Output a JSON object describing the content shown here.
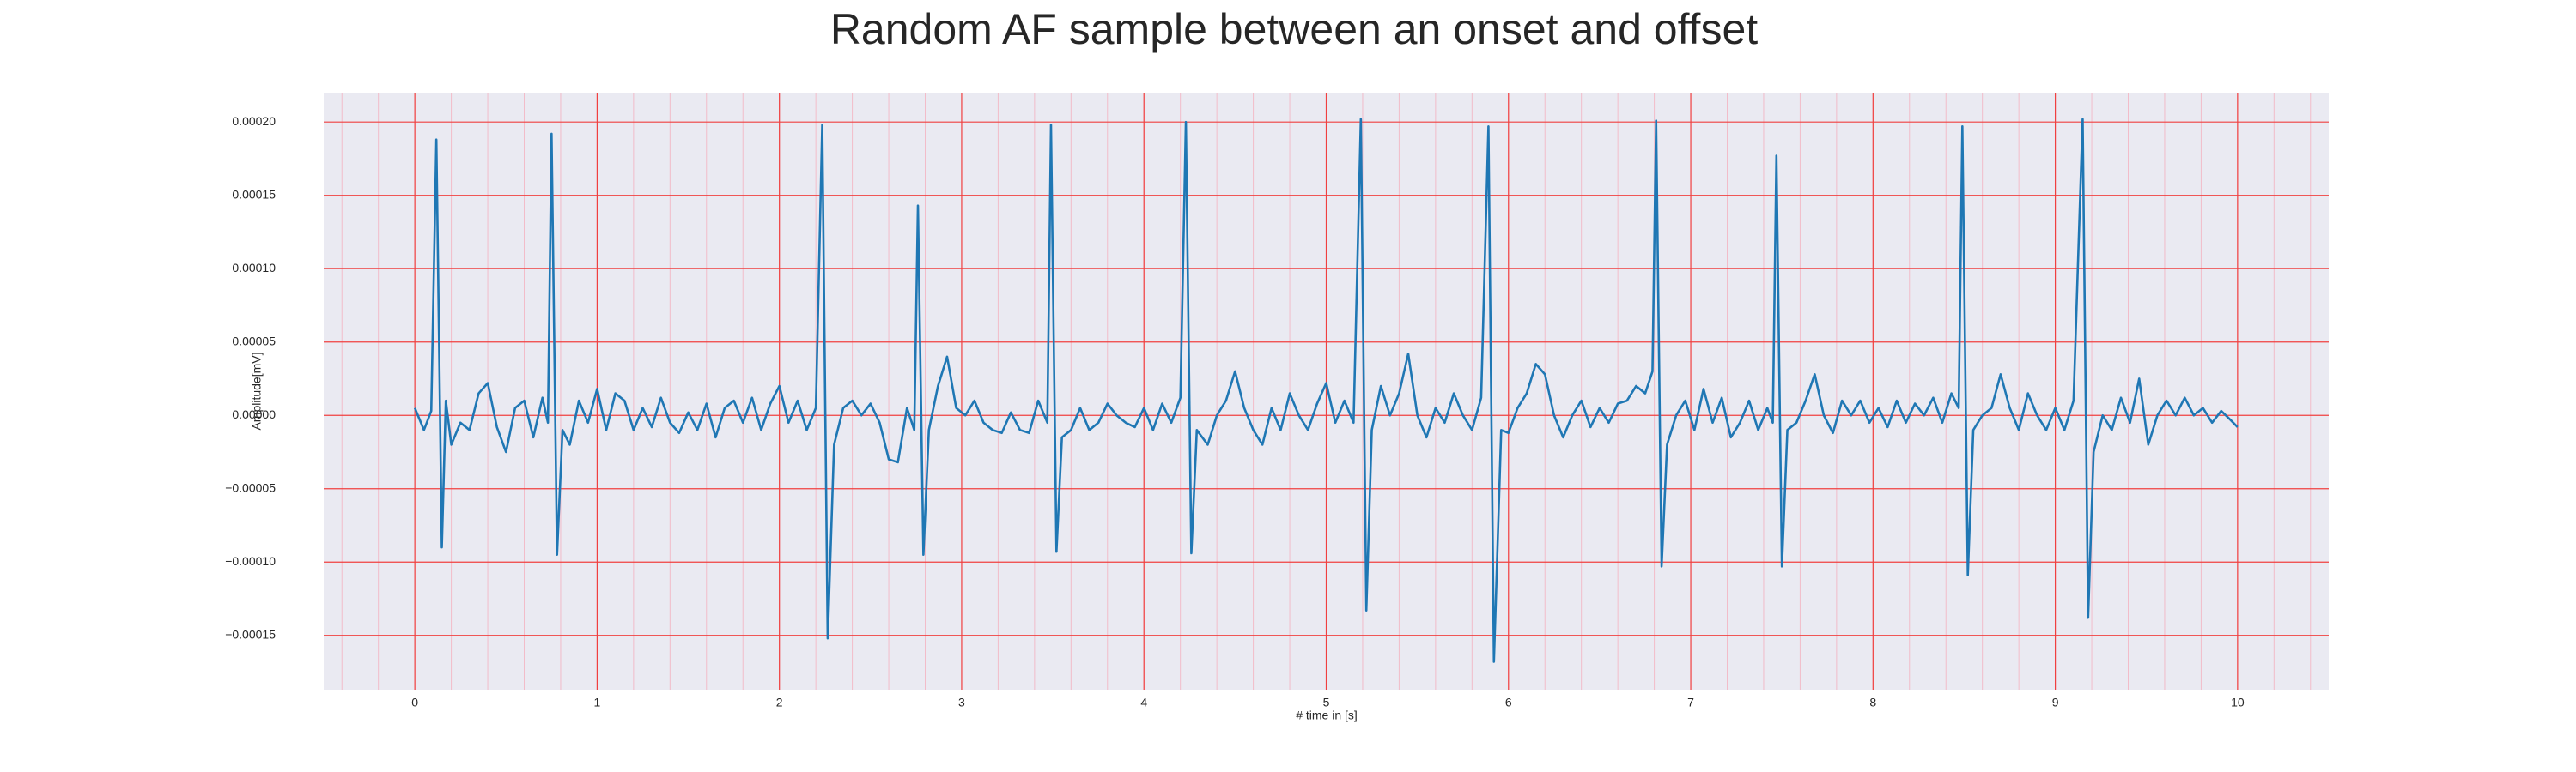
{
  "chart_data": {
    "type": "line",
    "title": "Random AF sample between an onset and offset",
    "xlabel": "# time in [s]",
    "ylabel": "Amplitude[mV]",
    "xlim": [
      -0.5,
      10.5
    ],
    "ylim": [
      -0.000187,
      0.00022
    ],
    "xticks": [
      0,
      1,
      2,
      3,
      4,
      5,
      6,
      7,
      8,
      9,
      10
    ],
    "yticks": [
      {
        "value": 0.0002,
        "label": "0.00020"
      },
      {
        "value": 0.00015,
        "label": "0.00015"
      },
      {
        "value": 0.0001,
        "label": "0.00010"
      },
      {
        "value": 5e-05,
        "label": "0.00005"
      },
      {
        "value": 0,
        "label": "0.00000"
      },
      {
        "value": -5e-05,
        "label": "−0.00005"
      },
      {
        "value": -0.0001,
        "label": "−0.00010"
      },
      {
        "value": -0.00015,
        "label": "−0.00015"
      }
    ],
    "grid": true,
    "minor_grid": true,
    "x": [
      0,
      0.05,
      0.09,
      0.118,
      0.148,
      0.17,
      0.2,
      0.25,
      0.3,
      0.35,
      0.4,
      0.45,
      0.5,
      0.55,
      0.6,
      0.65,
      0.7,
      0.73,
      0.75,
      0.78,
      0.81,
      0.85,
      0.9,
      0.95,
      1.0,
      1.05,
      1.1,
      1.15,
      1.2,
      1.25,
      1.3,
      1.35,
      1.4,
      1.45,
      1.5,
      1.55,
      1.6,
      1.65,
      1.7,
      1.75,
      1.8,
      1.85,
      1.9,
      1.95,
      2.0,
      2.05,
      2.1,
      2.15,
      2.2,
      2.235,
      2.265,
      2.3,
      2.35,
      2.4,
      2.45,
      2.5,
      2.55,
      2.6,
      2.65,
      2.7,
      2.74,
      2.76,
      2.79,
      2.82,
      2.87,
      2.92,
      2.97,
      3.02,
      3.07,
      3.12,
      3.17,
      3.22,
      3.27,
      3.32,
      3.37,
      3.42,
      3.47,
      3.49,
      3.52,
      3.55,
      3.6,
      3.65,
      3.7,
      3.75,
      3.8,
      3.85,
      3.9,
      3.95,
      4.0,
      4.05,
      4.1,
      4.15,
      4.2,
      4.23,
      4.26,
      4.29,
      4.35,
      4.4,
      4.45,
      4.5,
      4.55,
      4.6,
      4.65,
      4.7,
      4.75,
      4.8,
      4.85,
      4.9,
      4.95,
      5.0,
      5.05,
      5.1,
      5.15,
      5.19,
      5.22,
      5.25,
      5.3,
      5.35,
      5.4,
      5.45,
      5.5,
      5.55,
      5.6,
      5.65,
      5.7,
      5.75,
      5.8,
      5.85,
      5.89,
      5.92,
      5.96,
      6.0,
      6.05,
      6.1,
      6.15,
      6.2,
      6.25,
      6.3,
      6.35,
      6.4,
      6.45,
      6.5,
      6.55,
      6.6,
      6.65,
      6.7,
      6.75,
      6.79,
      6.81,
      6.84,
      6.87,
      6.92,
      6.97,
      7.02,
      7.07,
      7.12,
      7.17,
      7.22,
      7.27,
      7.32,
      7.37,
      7.42,
      7.45,
      7.47,
      7.5,
      7.53,
      7.58,
      7.63,
      7.68,
      7.73,
      7.78,
      7.83,
      7.88,
      7.93,
      7.98,
      8.03,
      8.08,
      8.13,
      8.18,
      8.23,
      8.28,
      8.33,
      8.38,
      8.43,
      8.47,
      8.49,
      8.52,
      8.55,
      8.6,
      8.65,
      8.7,
      8.75,
      8.8,
      8.85,
      8.9,
      8.95,
      9.0,
      9.05,
      9.1,
      9.15,
      9.18,
      9.21,
      9.26,
      9.31,
      9.36,
      9.41,
      9.46,
      9.51,
      9.56,
      9.61,
      9.66,
      9.71,
      9.76,
      9.81,
      9.86,
      9.91,
      9.96,
      10.0
    ],
    "series": [
      {
        "name": "Amplitude",
        "color": "#1f77b4",
        "values": [
          5e-06,
          -1e-05,
          3e-06,
          0.000188,
          -9e-05,
          1e-05,
          -2e-05,
          -5e-06,
          -1e-05,
          1.5e-05,
          2.2e-05,
          -8e-06,
          -2.5e-05,
          5e-06,
          1e-05,
          -1.5e-05,
          1.2e-05,
          -5e-06,
          0.000192,
          -9.5e-05,
          -1e-05,
          -2e-05,
          1e-05,
          -5e-06,
          1.8e-05,
          -1e-05,
          1.5e-05,
          1e-05,
          -1e-05,
          5e-06,
          -8e-06,
          1.2e-05,
          -5e-06,
          -1.2e-05,
          2e-06,
          -1e-05,
          8e-06,
          -1.5e-05,
          5e-06,
          1e-05,
          -5e-06,
          1.2e-05,
          -1e-05,
          8e-06,
          2e-05,
          -5e-06,
          1e-05,
          -1e-05,
          5e-06,
          0.000198,
          -0.000152,
          -2e-05,
          5e-06,
          1e-05,
          0,
          8e-06,
          -5e-06,
          -3e-05,
          -3.2e-05,
          5e-06,
          -1e-05,
          0.000143,
          -9.5e-05,
          -1e-05,
          2e-05,
          4e-05,
          5e-06,
          0,
          1e-05,
          -5e-06,
          -1e-05,
          -1.2e-05,
          2e-06,
          -1e-05,
          -1.2e-05,
          1e-05,
          -5e-06,
          0.000198,
          -9.3e-05,
          -1.5e-05,
          -1e-05,
          5e-06,
          -1e-05,
          -5e-06,
          8e-06,
          0,
          -5e-06,
          -8e-06,
          5e-06,
          -1e-05,
          8e-06,
          -5e-06,
          1.2e-05,
          0.0002,
          -9.4e-05,
          -1e-05,
          -2e-05,
          0,
          1e-05,
          3e-05,
          5e-06,
          -1e-05,
          -2e-05,
          5e-06,
          -1e-05,
          1.5e-05,
          0,
          -1e-05,
          8e-06,
          2.2e-05,
          -5e-06,
          1e-05,
          -5e-06,
          0.000202,
          -0.000133,
          -1e-05,
          2e-05,
          0,
          1.5e-05,
          4.2e-05,
          0,
          -1.5e-05,
          5e-06,
          -5e-06,
          1.5e-05,
          0,
          -1e-05,
          1.2e-05,
          0.000197,
          -0.000168,
          -1e-05,
          -1.2e-05,
          5e-06,
          1.5e-05,
          3.5e-05,
          2.8e-05,
          0,
          -1.5e-05,
          0,
          1e-05,
          -8e-06,
          5e-06,
          -5e-06,
          8e-06,
          1e-05,
          2e-05,
          1.5e-05,
          3e-05,
          0.000201,
          -0.000103,
          -2e-05,
          0,
          1e-05,
          -1e-05,
          1.8e-05,
          -5e-06,
          1.2e-05,
          -1.5e-05,
          -5e-06,
          1e-05,
          -1e-05,
          5e-06,
          -5e-06,
          0.000177,
          -0.000103,
          -1e-05,
          -5e-06,
          1e-05,
          2.8e-05,
          0,
          -1.2e-05,
          1e-05,
          0,
          1e-05,
          -5e-06,
          5e-06,
          -8e-06,
          1e-05,
          -5e-06,
          8e-06,
          0,
          1.2e-05,
          -5e-06,
          1.5e-05,
          5e-06,
          0.000197,
          -0.000109,
          -1e-05,
          0,
          5e-06,
          2.8e-05,
          5e-06,
          -1e-05,
          1.5e-05,
          0,
          -1e-05,
          5e-06,
          -1e-05,
          1e-05,
          0.000202,
          -0.000138,
          -2.5e-05,
          0,
          -1e-05,
          1.2e-05,
          -5e-06,
          2.5e-05,
          -2e-05,
          0,
          1e-05,
          0,
          1.2e-05,
          0,
          5e-06,
          -5e-06,
          3e-06,
          -3e-06,
          -8e-06
        ]
      }
    ]
  }
}
